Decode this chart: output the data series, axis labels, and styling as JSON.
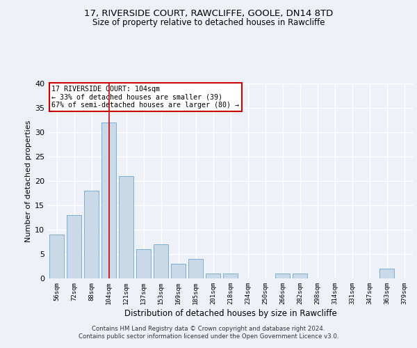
{
  "title1": "17, RIVERSIDE COURT, RAWCLIFFE, GOOLE, DN14 8TD",
  "title2": "Size of property relative to detached houses in Rawcliffe",
  "xlabel": "Distribution of detached houses by size in Rawcliffe",
  "ylabel": "Number of detached properties",
  "categories": [
    "56sqm",
    "72sqm",
    "88sqm",
    "104sqm",
    "121sqm",
    "137sqm",
    "153sqm",
    "169sqm",
    "185sqm",
    "201sqm",
    "218sqm",
    "234sqm",
    "250sqm",
    "266sqm",
    "282sqm",
    "298sqm",
    "314sqm",
    "331sqm",
    "347sqm",
    "363sqm",
    "379sqm"
  ],
  "values": [
    9,
    13,
    18,
    32,
    21,
    6,
    7,
    3,
    4,
    1,
    1,
    0,
    0,
    1,
    1,
    0,
    0,
    0,
    0,
    2,
    0
  ],
  "bar_color": "#c9d9e8",
  "bar_edge_color": "#7bafd4",
  "highlight_index": 3,
  "vline_color": "#cc0000",
  "annotation_text": "17 RIVERSIDE COURT: 104sqm\n← 33% of detached houses are smaller (39)\n67% of semi-detached houses are larger (80) →",
  "annotation_box_color": "#ffffff",
  "annotation_box_edge": "#cc0000",
  "ylim": [
    0,
    40
  ],
  "yticks": [
    0,
    5,
    10,
    15,
    20,
    25,
    30,
    35,
    40
  ],
  "footer": "Contains HM Land Registry data © Crown copyright and database right 2024.\nContains public sector information licensed under the Open Government Licence v3.0.",
  "background_color": "#eef2f8",
  "grid_color": "#ffffff"
}
